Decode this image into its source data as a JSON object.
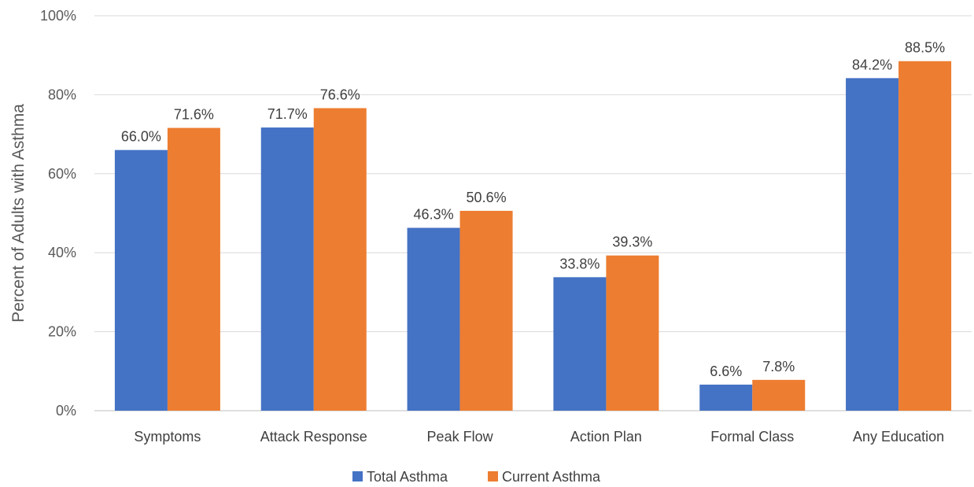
{
  "chart_data": {
    "type": "bar",
    "ylabel": "Percent of Adults with Asthma",
    "ylim": [
      0,
      100
    ],
    "yticks": [
      "0%",
      "20%",
      "40%",
      "60%",
      "80%",
      "100%"
    ],
    "grid": true,
    "legend_position": "bottom",
    "categories": [
      "Symptoms",
      "Attack Response",
      "Peak Flow",
      "Action Plan",
      "Formal Class",
      "Any Education"
    ],
    "series": [
      {
        "name": "Total Asthma",
        "color": "#4472C4",
        "values": [
          66.0,
          71.7,
          46.3,
          33.8,
          6.6,
          84.2
        ],
        "labels": [
          "66.0%",
          "71.7%",
          "46.3%",
          "33.8%",
          "6.6%",
          "84.2%"
        ]
      },
      {
        "name": "Current Asthma",
        "color": "#ED7D31",
        "values": [
          71.6,
          76.6,
          50.6,
          39.3,
          7.8,
          88.5
        ],
        "labels": [
          "71.6%",
          "76.6%",
          "50.6%",
          "39.3%",
          "7.8%",
          "88.5%"
        ]
      }
    ]
  }
}
